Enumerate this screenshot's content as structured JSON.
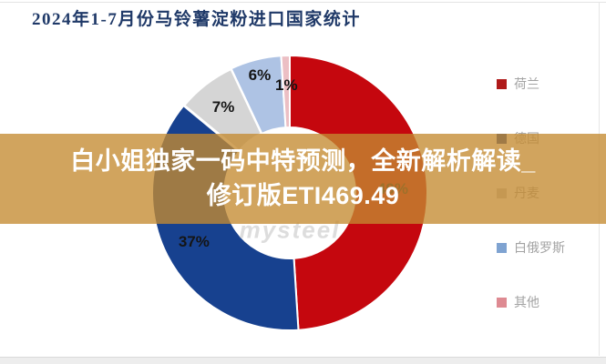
{
  "page": {
    "title": "2024年1-7月份马铃薯淀粉进口国家统计"
  },
  "overlay_banner": {
    "line1": "白小姐独家一码中特预测，全新解析解读_",
    "line2": "修订版ETI469.49",
    "background_color": "#C48B31",
    "text_color": "#FFFFFF"
  },
  "watermark": "mysteel",
  "chart_data": {
    "type": "pie",
    "subtype": "donut",
    "title": "2024年1-7月份马铃薯淀粉进口国家统计",
    "start_angle_deg": 0,
    "direction": "clockwise",
    "categories": [
      "荷兰",
      "德国",
      "丹麦",
      "白俄罗斯",
      "其他"
    ],
    "values": [
      49,
      37,
      7,
      6,
      1
    ],
    "unit": "%",
    "labels": [
      "49%",
      "37%",
      "7%",
      "6%",
      "1%"
    ],
    "colors": [
      "#C5070E",
      "#17418F",
      "#D5D5D5",
      "#AEC3E4",
      "#ECBFC4"
    ],
    "legend_position": "right",
    "legend": [
      {
        "label": "荷兰",
        "color": "#AF1A1A"
      },
      {
        "label": "德国",
        "color": "#1F4291"
      },
      {
        "label": "丹麦",
        "color": "#C6C6C6"
      },
      {
        "label": "白俄罗斯",
        "color": "#7FA3D1"
      },
      {
        "label": "其他",
        "color": "#DE8A92"
      }
    ]
  }
}
